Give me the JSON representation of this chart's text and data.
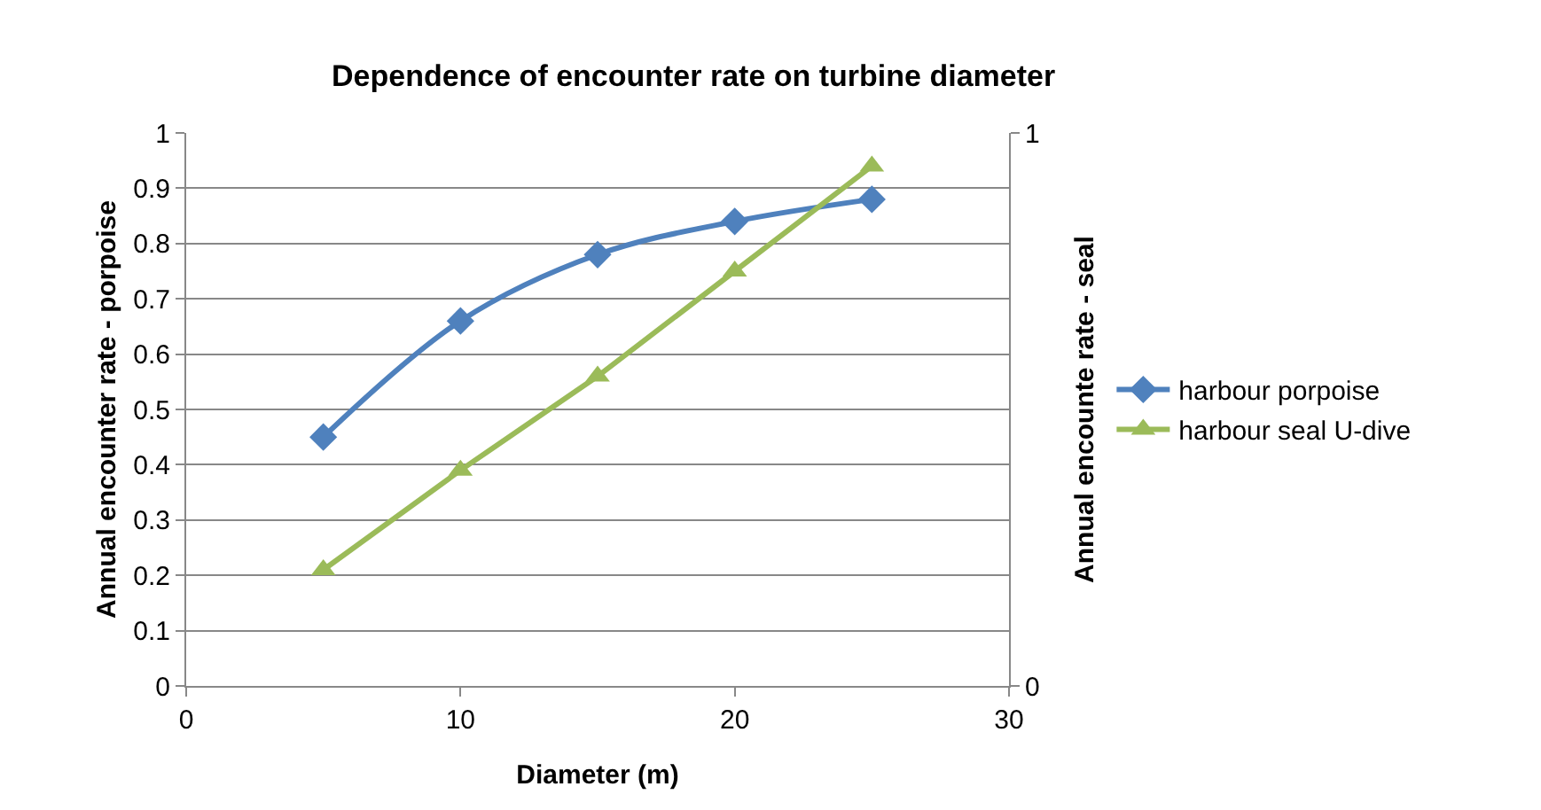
{
  "chart_data": {
    "type": "line",
    "title": "Dependence of encounter rate on turbine diameter",
    "xlabel": "Diameter (m)",
    "ylabel": "Annual encounter rate - porpoise",
    "y2label": "Annual encounte rate - seal",
    "x": [
      5,
      10,
      15,
      20,
      25
    ],
    "series": [
      {
        "name": "harbour porpoise",
        "color": "#4f81bd",
        "marker": "diamond",
        "values": [
          0.45,
          0.66,
          0.78,
          0.84,
          0.88
        ]
      },
      {
        "name": "harbour seal U-dive",
        "color": "#9bbb59",
        "marker": "triangle",
        "axis": "y2",
        "values": [
          0.21,
          0.39,
          0.56,
          0.75,
          0.94
        ]
      }
    ],
    "xlim": [
      0,
      30
    ],
    "xticks": [
      0,
      10,
      20,
      30
    ],
    "ylim": [
      0,
      1
    ],
    "yticks": [
      0,
      0.1,
      0.2,
      0.3,
      0.4,
      0.5,
      0.6,
      0.7,
      0.8,
      0.9,
      1
    ],
    "y2lim": [
      0,
      1
    ],
    "y2ticks": [
      0,
      1
    ],
    "grid": "y",
    "legend": "right",
    "line_style": "solid"
  }
}
